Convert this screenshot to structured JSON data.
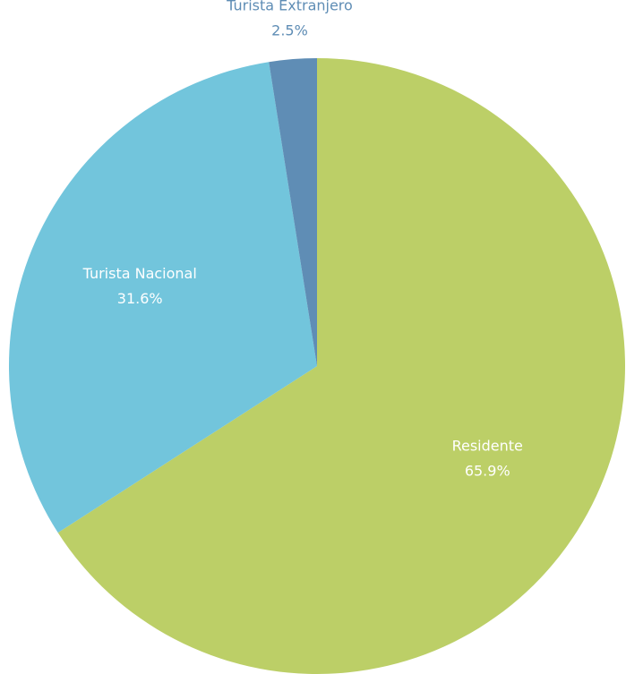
{
  "chart_data": {
    "type": "pie",
    "categories": [
      "Residente",
      "Turista Nacional",
      "Turista Extranjero"
    ],
    "values": [
      65.9,
      31.6,
      2.5
    ],
    "value_labels": [
      "65.9%",
      "31.6%",
      "2.5%"
    ],
    "colors": [
      "#bccf67",
      "#72c5dc",
      "#5f8db5"
    ]
  }
}
